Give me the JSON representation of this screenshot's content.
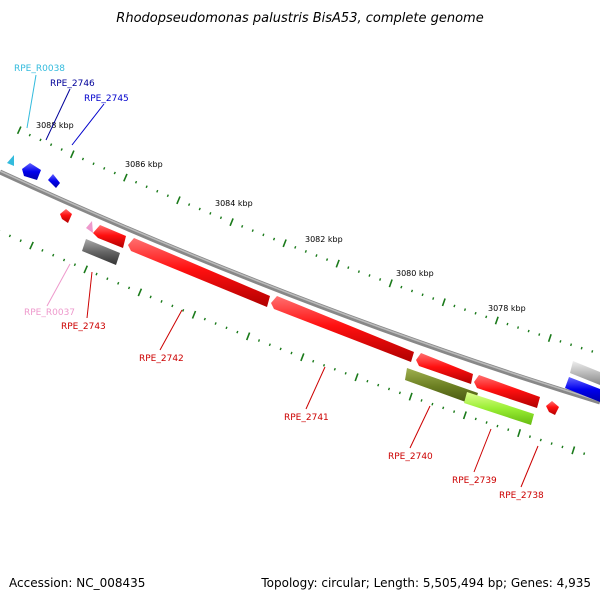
{
  "title": "Rhodopseudomonas palustris BisA53, complete genome",
  "footer": {
    "accession": "Accession: NC_008435",
    "summary": "Topology: circular; Length: 5,505,494 bp; Genes: 4,935"
  },
  "ruler": [
    "3088 kbp",
    "3086 kbp",
    "3084 kbp",
    "3082 kbp",
    "3080 kbp",
    "3078 kbp"
  ],
  "genes": [
    {
      "id": "rpe-r0038",
      "label": "RPE_R0038",
      "color": "#33bbdd"
    },
    {
      "id": "rpe-2746",
      "label": "RPE_2746",
      "color": "#000099"
    },
    {
      "id": "rpe-2745",
      "label": "RPE_2745",
      "color": "#0000cc"
    },
    {
      "id": "rpe-r0037",
      "label": "RPE_R0037",
      "color": "#ee99cc"
    },
    {
      "id": "rpe-2743",
      "label": "RPE_2743",
      "color": "#cc0000"
    },
    {
      "id": "rpe-2742",
      "label": "RPE_2742",
      "color": "#cc0000"
    },
    {
      "id": "rpe-2741",
      "label": "RPE_2741",
      "color": "#cc0000"
    },
    {
      "id": "rpe-2740",
      "label": "RPE_2740",
      "color": "#cc0000"
    },
    {
      "id": "rpe-2739",
      "label": "RPE_2739",
      "color": "#cc0000"
    },
    {
      "id": "rpe-2738",
      "label": "RPE_2738",
      "color": "#cc0000"
    }
  ]
}
